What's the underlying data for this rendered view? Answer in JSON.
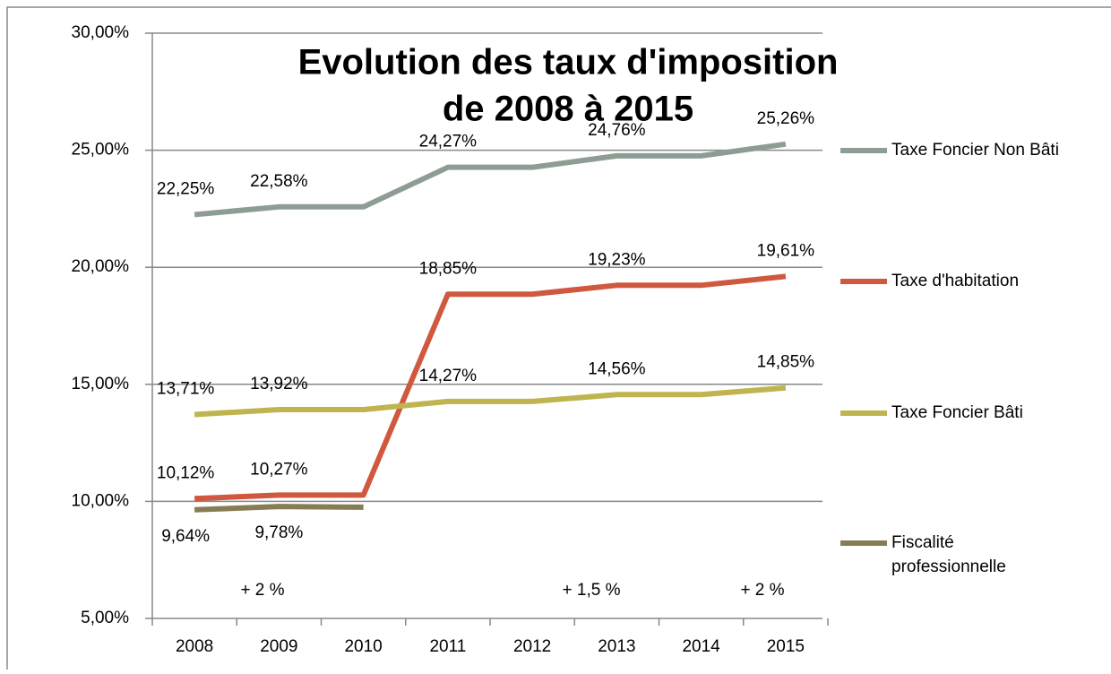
{
  "chart_data": {
    "type": "line",
    "title": [
      "Evolution des taux d'imposition",
      "de 2008 à 2015"
    ],
    "categories": [
      "2008",
      "2009",
      "2010",
      "2011",
      "2012",
      "2013",
      "2014",
      "2015"
    ],
    "series": [
      {
        "name": "Taxe Foncier Non Bâti",
        "color": "#8e9d93",
        "values": [
          22.25,
          22.58,
          22.58,
          24.27,
          24.27,
          24.76,
          24.76,
          25.26
        ],
        "value_labels": [
          "22,25%",
          "22,58%",
          null,
          "24,27%",
          null,
          "24,76%",
          null,
          "25,26%"
        ]
      },
      {
        "name": "Taxe d'habitation",
        "color": "#d0583e",
        "values": [
          10.12,
          10.27,
          10.27,
          18.85,
          18.85,
          19.23,
          19.23,
          19.61
        ],
        "value_labels": [
          "10,12%",
          "10,27%",
          null,
          "18,85%",
          null,
          "19,23%",
          null,
          "19,61%"
        ]
      },
      {
        "name": "Taxe Foncier Bâti",
        "color": "#bfb44f",
        "values": [
          13.71,
          13.92,
          13.92,
          14.27,
          14.27,
          14.56,
          14.56,
          14.85
        ],
        "value_labels": [
          "13,71%",
          "13,92%",
          null,
          "14,27%",
          null,
          "14,56%",
          null,
          "14,85%"
        ]
      },
      {
        "name": "Fiscalité professionnelle",
        "color": "#877d55",
        "values": [
          9.64,
          9.78,
          9.75,
          null,
          null,
          null,
          null,
          null
        ],
        "value_labels": [
          "9,64%",
          "9,78%",
          null,
          null,
          null,
          null,
          null,
          null
        ]
      }
    ],
    "annotations": [
      "+ 2 %",
      "+ 1,5 %",
      "+ 2 %"
    ],
    "ylim": [
      5,
      30
    ],
    "yticks": [
      {
        "value": 5,
        "label": "5,00%"
      },
      {
        "value": 10,
        "label": "10,00%"
      },
      {
        "value": 15,
        "label": "15,00%"
      },
      {
        "value": 20,
        "label": "20,00%"
      },
      {
        "value": 25,
        "label": "25,00%"
      },
      {
        "value": 30,
        "label": "30,00%"
      }
    ],
    "grid": true,
    "legend": "right"
  }
}
